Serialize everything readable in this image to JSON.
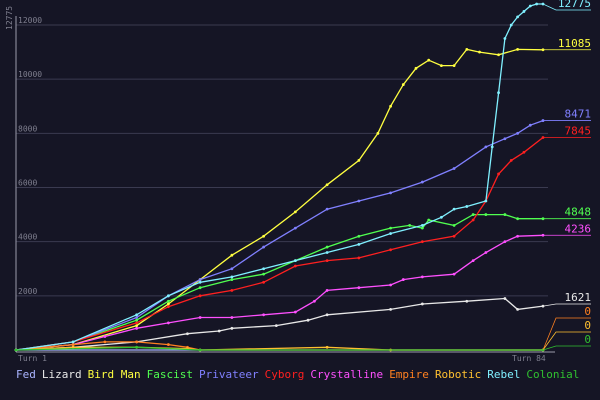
{
  "chart_data": {
    "type": "line",
    "ylabel": "12775",
    "ylim": [
      0,
      12775
    ],
    "yticks": [
      2000,
      4000,
      6000,
      8000,
      10000,
      12000
    ],
    "x_start_label": "Turn 1",
    "x_end_label": "Turn 84",
    "xlim": [
      1,
      84
    ],
    "grid": true,
    "legend_placement": "bottom",
    "background_color": "#151525",
    "series": [
      {
        "name": "Fed",
        "color": "#aab4ff",
        "end_label": "",
        "x": [
          1,
          84
        ],
        "y": [
          0,
          0
        ]
      },
      {
        "name": "Lizard",
        "color": "#e8e8e8",
        "end_label": "1621",
        "x": [
          1,
          10,
          20,
          28,
          33,
          35,
          42,
          47,
          50,
          60,
          65,
          72,
          78,
          80,
          84
        ],
        "y": [
          0,
          100,
          300,
          600,
          700,
          800,
          900,
          1100,
          1300,
          1500,
          1700,
          1800,
          1900,
          1500,
          1621
        ]
      },
      {
        "name": "Bird Man",
        "color": "#ffff40",
        "end_label": "11085",
        "x": [
          1,
          10,
          20,
          25,
          30,
          35,
          40,
          45,
          50,
          55,
          58,
          60,
          62,
          64,
          66,
          68,
          70,
          72,
          74,
          77,
          80,
          84
        ],
        "y": [
          0,
          200,
          900,
          1700,
          2600,
          3500,
          4200,
          5100,
          6100,
          7000,
          8000,
          9000,
          9800,
          10400,
          10700,
          10500,
          10500,
          11100,
          11000,
          10900,
          11100,
          11085
        ]
      },
      {
        "name": "Fascist",
        "color": "#50ff50",
        "end_label": "4848",
        "x": [
          1,
          10,
          20,
          25,
          30,
          35,
          40,
          45,
          50,
          55,
          60,
          63,
          65,
          66,
          70,
          73,
          75,
          78,
          80,
          84
        ],
        "y": [
          0,
          300,
          1100,
          1800,
          2300,
          2600,
          2800,
          3300,
          3800,
          4200,
          4500,
          4600,
          4500,
          4800,
          4600,
          5000,
          5000,
          5000,
          4848,
          4848
        ]
      },
      {
        "name": "Privateer",
        "color": "#8080ff",
        "end_label": "8471",
        "x": [
          1,
          10,
          20,
          25,
          30,
          35,
          40,
          45,
          50,
          55,
          60,
          65,
          70,
          75,
          78,
          80,
          82,
          84
        ],
        "y": [
          0,
          300,
          1200,
          2000,
          2600,
          3000,
          3800,
          4500,
          5200,
          5500,
          5800,
          6200,
          6700,
          7500,
          7800,
          8000,
          8300,
          8471
        ]
      },
      {
        "name": "Cyborg",
        "color": "#ff2020",
        "end_label": "7845",
        "x": [
          1,
          10,
          20,
          25,
          30,
          35,
          40,
          45,
          50,
          55,
          60,
          65,
          70,
          73,
          75,
          77,
          79,
          81,
          84
        ],
        "y": [
          0,
          300,
          1000,
          1600,
          2000,
          2200,
          2500,
          3100,
          3300,
          3400,
          3700,
          4000,
          4200,
          4800,
          5500,
          6500,
          7000,
          7300,
          7845
        ]
      },
      {
        "name": "Crystalline",
        "color": "#ff50ff",
        "end_label": "4236",
        "x": [
          1,
          10,
          15,
          20,
          25,
          30,
          35,
          40,
          45,
          48,
          50,
          55,
          60,
          62,
          65,
          70,
          73,
          75,
          78,
          80,
          84
        ],
        "y": [
          0,
          200,
          500,
          800,
          1000,
          1200,
          1200,
          1300,
          1400,
          1800,
          2200,
          2300,
          2400,
          2600,
          2700,
          2800,
          3300,
          3600,
          4000,
          4200,
          4236
        ]
      },
      {
        "name": "Empire",
        "color": "#ff8020",
        "end_label": "0",
        "x": [
          1,
          10,
          15,
          20,
          25,
          28,
          30,
          84
        ],
        "y": [
          0,
          200,
          300,
          300,
          200,
          100,
          0,
          0
        ]
      },
      {
        "name": "Robotic",
        "color": "#ffc030",
        "end_label": "0",
        "x": [
          1,
          10,
          20,
          28,
          30,
          50,
          60,
          84
        ],
        "y": [
          0,
          100,
          100,
          50,
          0,
          100,
          0,
          0
        ]
      },
      {
        "name": "Rebel",
        "color": "#80f0ff",
        "end_label": "12775",
        "x": [
          1,
          10,
          20,
          25,
          30,
          35,
          40,
          45,
          50,
          55,
          60,
          65,
          68,
          70,
          72,
          75,
          76,
          77,
          78,
          79,
          80,
          81,
          82,
          83,
          84
        ],
        "y": [
          0,
          300,
          1300,
          2000,
          2500,
          2700,
          3000,
          3300,
          3600,
          3900,
          4300,
          4600,
          4900,
          5200,
          5300,
          5500,
          7500,
          9500,
          11500,
          12000,
          12300,
          12500,
          12700,
          12775,
          12775
        ]
      },
      {
        "name": "Colonial",
        "color": "#30c030",
        "end_label": "0",
        "x": [
          1,
          20,
          30,
          84
        ],
        "y": [
          0,
          100,
          0,
          0
        ]
      }
    ]
  }
}
